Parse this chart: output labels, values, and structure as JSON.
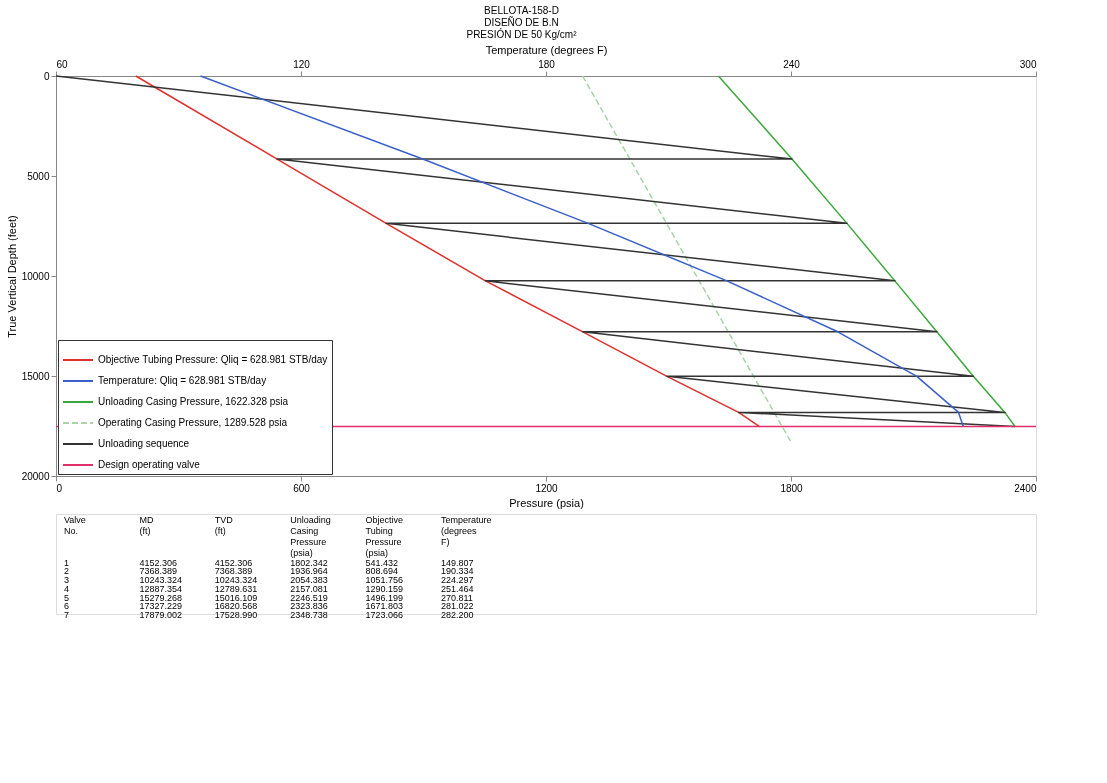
{
  "chart_data": {
    "type": "line",
    "title": "BELLOTA-158-D\nDISEÑO DE B.N\nPRESIÓN DE 50 Kg/cm²",
    "xlabel": "Pressure (psia)",
    "x2label": "Temperature (degrees F)",
    "ylabel": "True Vertical Depth (feet)",
    "xlim": [
      0,
      2400
    ],
    "xticks": [
      0,
      600,
      1200,
      1800,
      2400
    ],
    "x2lim": [
      60,
      300
    ],
    "x2ticks": [
      60,
      120,
      180,
      240,
      300
    ],
    "ylim": [
      20000,
      0
    ],
    "yticks": [
      0,
      5000,
      10000,
      15000,
      20000
    ],
    "grid": false,
    "legend": "bottom left",
    "marker": "none",
    "series": [
      {
        "name": "Objective Tubing Pressure: Qliq = 628.981 STB/day",
        "color": "#e0302c",
        "line_style": "solid",
        "x": [
          195.4,
          541.432,
          808.694,
          1051.756,
          1290.159,
          1496.199,
          1671.803,
          1723.066
        ],
        "values": [
          0,
          4152.306,
          7368.389,
          10243.324,
          12789.631,
          15016.109,
          16820.568,
          17528.99
        ]
      },
      {
        "name": "Temperature: Qliq = 628.981 STB/day",
        "color": "#3a5fc8",
        "line_style": "solid",
        "axis": "x2",
        "x": [
          95.4,
          149.807,
          190.334,
          224.297,
          251.464,
          270.811,
          281.022,
          282.2
        ],
        "values": [
          0,
          4152.306,
          7368.389,
          10243.324,
          12789.631,
          15016.109,
          16820.568,
          17528.99
        ]
      },
      {
        "name": "Unloading Casing Pressure, 1622.328 psia",
        "color": "#3aa83a",
        "line_style": "solid",
        "x": [
          1622.328,
          1802.342,
          1936.964,
          2054.383,
          2157.081,
          2246.519,
          2323.836,
          2348.738
        ],
        "values": [
          0,
          4152.306,
          7368.389,
          10243.324,
          12789.631,
          15016.109,
          16820.568,
          17528.99
        ]
      },
      {
        "name": "Operating Casing Pressure, 1289.528 psia",
        "color": "#a8d4a8",
        "line_style": "dashed",
        "x": [
          1289.528,
          1800
        ],
        "values": [
          0,
          18300
        ]
      },
      {
        "name": "Unloading sequence",
        "color": "#333333",
        "line_style": "solid",
        "x": [
          0,
          1802.342,
          541.432,
          1936.964,
          808.694,
          2054.383,
          1051.756,
          2157.081,
          1290.159,
          2246.519,
          1496.199,
          2323.836,
          1671.803,
          2348.738
        ],
        "values": [
          0,
          4152.306,
          4152.306,
          7368.389,
          7368.389,
          10243.324,
          10243.324,
          12789.631,
          12789.631,
          15016.109,
          15016.109,
          16820.568,
          16820.568,
          17528.99
        ]
      },
      {
        "name": "Design operating valve",
        "color": "#e0306a",
        "line_style": "solid",
        "x": [
          0,
          2400
        ],
        "values": [
          17528.99,
          17528.99
        ]
      }
    ],
    "annotations": [
      "Valve No.  MD (ft)  TVD (ft)  Unloading Casing Pressure (psia)  Objective Tubing Pressure (psia)  Temperature (degrees F)",
      "1  4152.306  4152.306  1802.342  541.432  149.807",
      "2  7368.389  7368.389  1936.964  808.694  190.334",
      "3  10243.324  10243.324  2054.383  1051.756  224.297",
      "4  12887.354  12789.631  2157.081  1290.159  251.464",
      "5  15279.268  15016.109  2246.519  1496.199  270.811",
      "6  17327.229  16820.568  2323.836  1671.803  281.022",
      "7  17879.002  17528.990  2348.738  1723.066  282.200"
    ]
  }
}
